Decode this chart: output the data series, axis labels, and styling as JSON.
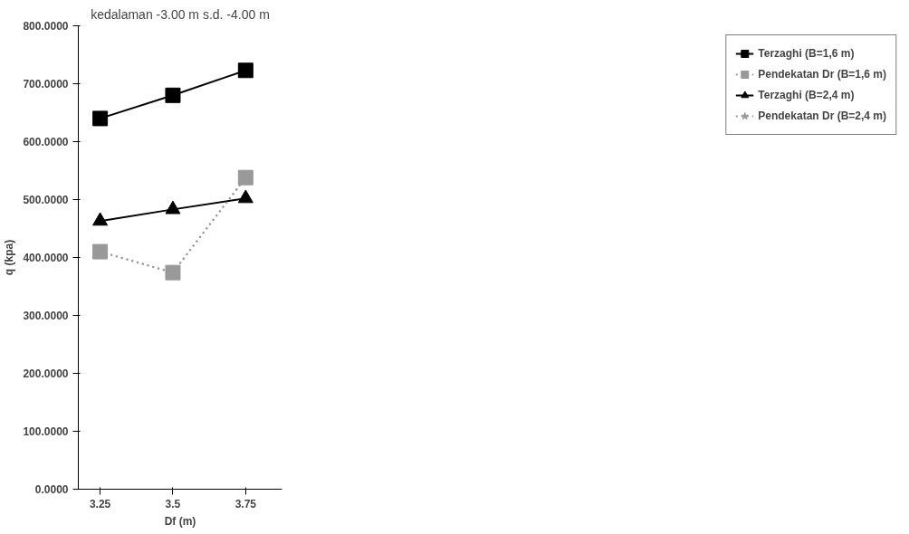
{
  "chart_data": {
    "type": "line",
    "title": "kedalaman -3.00 m s.d. -4.00 m",
    "xlabel": "Df (m)",
    "ylabel": "q (kpa)",
    "categories": [
      "3.25",
      "3.5",
      "3.75"
    ],
    "series": [
      {
        "name": "Terzaghi (B=1,6 m)",
        "color": "#000000",
        "values": [
          640,
          680,
          723
        ],
        "marker": "square",
        "line_style": "solid"
      },
      {
        "name": "Pendekatan Dr (B=1,6 m)",
        "color": "#999999",
        "values": [
          410,
          374,
          538
        ],
        "marker": "square",
        "line_style": "dotted"
      },
      {
        "name": "Terzaghi (B=2,4 m)",
        "color": "#000000",
        "values": [
          463,
          483,
          502
        ],
        "marker": "triangle",
        "line_style": "solid"
      },
      {
        "name": "Pendekatan Dr (B=2,4 m)",
        "color": "#999999",
        "values": [
          410,
          374,
          538
        ],
        "marker": "star",
        "line_style": "dotted"
      }
    ],
    "ylim": [
      0,
      800
    ],
    "yticks": [
      {
        "value": 0,
        "label": "0.0000"
      },
      {
        "value": 100,
        "label": "100.0000"
      },
      {
        "value": 200,
        "label": "200.0000"
      },
      {
        "value": 300,
        "label": "300.0000"
      },
      {
        "value": 400,
        "label": "400.0000"
      },
      {
        "value": 500,
        "label": "500.0000"
      },
      {
        "value": 600,
        "label": "600.0000"
      },
      {
        "value": 700,
        "label": "700.0000"
      },
      {
        "value": 800,
        "label": "800.0000"
      }
    ],
    "grid": false,
    "legend": "right"
  }
}
